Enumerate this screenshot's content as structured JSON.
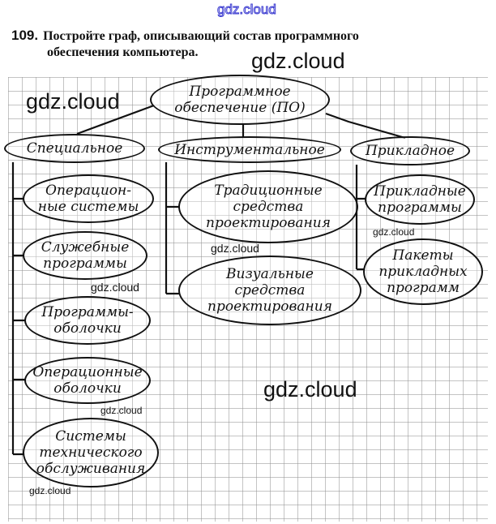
{
  "watermark": "gdz.cloud",
  "task": {
    "number": "109.",
    "line1": "Постройте граф, описывающий состав программного",
    "line2": "обеспечения компьютера."
  },
  "root": {
    "lines": [
      "Программное",
      "обеспечение (ПО)"
    ]
  },
  "categories": [
    {
      "label": "Специальное",
      "children": [
        {
          "lines": [
            "Операцион-",
            "ные системы"
          ]
        },
        {
          "lines": [
            "Служебные",
            "программы"
          ]
        },
        {
          "lines": [
            "Программы-",
            "оболочки"
          ]
        },
        {
          "lines": [
            "Операционные",
            "оболочки"
          ]
        },
        {
          "lines": [
            "Системы",
            "технического",
            "обслуживания"
          ]
        }
      ]
    },
    {
      "label": "Инструментальное",
      "children": [
        {
          "lines": [
            "Традиционные",
            "средства",
            "проектирования"
          ]
        },
        {
          "lines": [
            "Визуальные",
            "средства",
            "проектирования"
          ]
        }
      ]
    },
    {
      "label": "Прикладное",
      "children": [
        {
          "lines": [
            "Прикладные",
            "программы"
          ]
        },
        {
          "lines": [
            "Пакеты",
            "прикладных",
            "программ"
          ]
        }
      ]
    }
  ]
}
